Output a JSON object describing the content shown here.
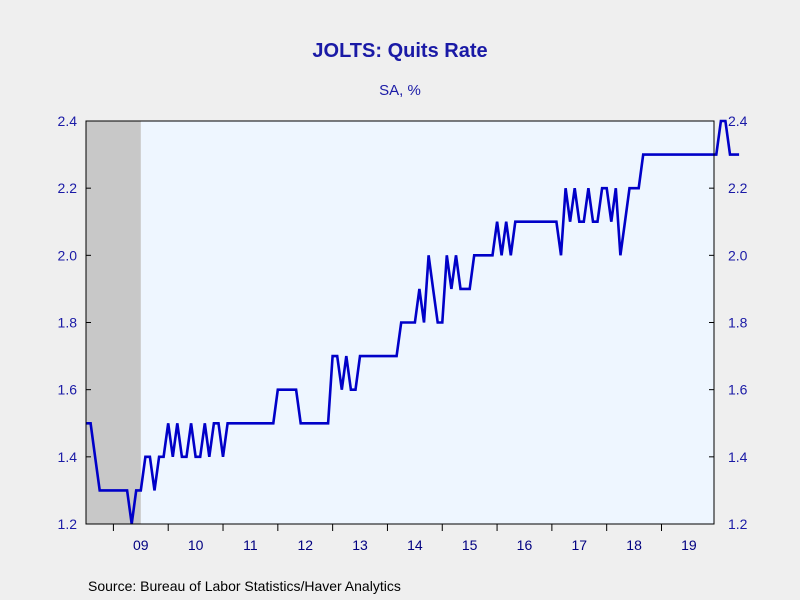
{
  "chart_data": {
    "type": "line",
    "title": "JOLTS: Quits Rate",
    "subtitle": "SA, %",
    "source": "Source:  Bureau of Labor Statistics/Haver Analytics",
    "ylim": [
      1.2,
      2.4
    ],
    "yticks": [
      "1.2",
      "1.4",
      "1.6",
      "1.8",
      "2.0",
      "2.2",
      "2.4"
    ],
    "xlim": [
      2008.5,
      2019.958
    ],
    "xtick_labels": [
      "09",
      "10",
      "11",
      "12",
      "13",
      "14",
      "15",
      "16",
      "17",
      "18",
      "19"
    ],
    "recession_shading": [
      2008.5,
      2009.5
    ],
    "colors": {
      "line": "#0000c8",
      "text": "#1a1aa6",
      "plot_bg": "#eef6ff",
      "recession": "#c8c8c8",
      "page_bg": "#efefef"
    },
    "series": [
      {
        "x_start": "2008-07",
        "frequency": "monthly",
        "values": [
          1.5,
          1.5,
          1.4,
          1.3,
          1.3,
          1.3,
          1.3,
          1.3,
          1.3,
          1.3,
          1.2,
          1.3,
          1.3,
          1.4,
          1.4,
          1.3,
          1.4,
          1.4,
          1.5,
          1.4,
          1.5,
          1.4,
          1.4,
          1.5,
          1.4,
          1.4,
          1.5,
          1.4,
          1.5,
          1.5,
          1.4,
          1.5,
          1.5,
          1.5,
          1.5,
          1.5,
          1.5,
          1.5,
          1.5,
          1.5,
          1.5,
          1.5,
          1.6,
          1.6,
          1.6,
          1.6,
          1.6,
          1.5,
          1.5,
          1.5,
          1.5,
          1.5,
          1.5,
          1.5,
          1.7,
          1.7,
          1.6,
          1.7,
          1.6,
          1.6,
          1.7,
          1.7,
          1.7,
          1.7,
          1.7,
          1.7,
          1.7,
          1.7,
          1.7,
          1.8,
          1.8,
          1.8,
          1.8,
          1.9,
          1.8,
          2.0,
          1.9,
          1.8,
          1.8,
          2.0,
          1.9,
          2.0,
          1.9,
          1.9,
          1.9,
          2.0,
          2.0,
          2.0,
          2.0,
          2.0,
          2.1,
          2.0,
          2.1,
          2.0,
          2.1,
          2.1,
          2.1,
          2.1,
          2.1,
          2.1,
          2.1,
          2.1,
          2.1,
          2.1,
          2.0,
          2.2,
          2.1,
          2.2,
          2.1,
          2.1,
          2.2,
          2.1,
          2.1,
          2.2,
          2.2,
          2.1,
          2.2,
          2.0,
          2.1,
          2.2,
          2.2,
          2.2,
          2.3,
          2.3,
          2.3,
          2.3,
          2.3,
          2.3,
          2.3,
          2.3,
          2.3,
          2.3,
          2.3,
          2.3,
          2.3,
          2.3,
          2.3,
          2.3,
          2.3,
          2.4,
          2.4,
          2.3,
          2.3,
          2.3
        ]
      }
    ]
  }
}
